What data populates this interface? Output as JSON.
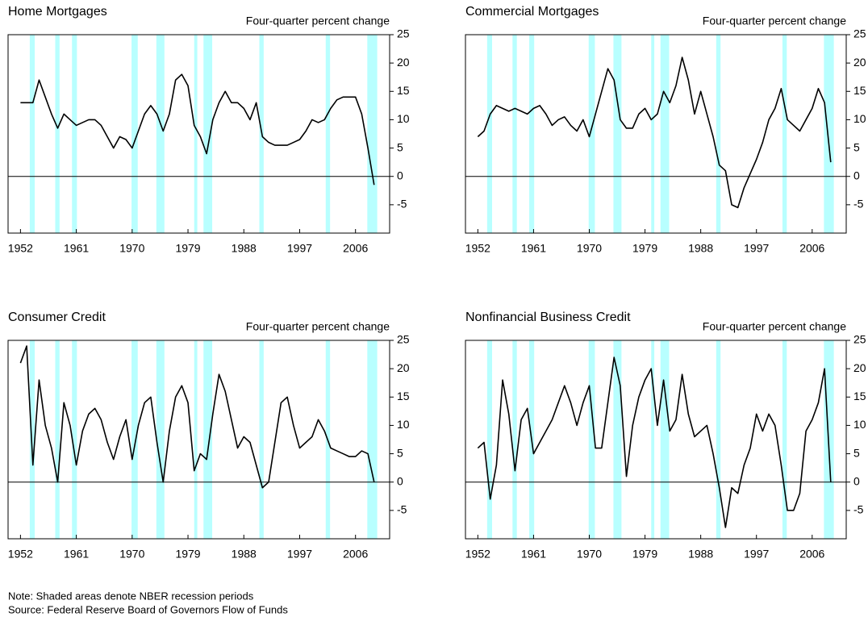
{
  "chart_data": [
    {
      "type": "line",
      "title": "Home Mortgages",
      "y_label": "Four-quarter percent change",
      "color": "#000000",
      "recession_color": "#b8ffff",
      "xlim": [
        1950,
        2011.5
      ],
      "xticks": [
        1952,
        1961,
        1970,
        1979,
        1988,
        1997,
        2006
      ],
      "ylim": [
        -10,
        25
      ],
      "yticks": [
        -5,
        0,
        5,
        10,
        15,
        20,
        25
      ],
      "zero_line": true,
      "recessions": [
        [
          1953.5,
          1954.3
        ],
        [
          1957.6,
          1958.3
        ],
        [
          1960.3,
          1961.1
        ],
        [
          1969.9,
          1970.9
        ],
        [
          1973.9,
          1975.2
        ],
        [
          1980.0,
          1980.5
        ],
        [
          1981.5,
          1982.9
        ],
        [
          1990.5,
          1991.2
        ],
        [
          2001.2,
          2001.9
        ],
        [
          2007.9,
          2009.5
        ]
      ],
      "x": [
        1952,
        1953,
        1954,
        1955,
        1956,
        1957,
        1958,
        1959,
        1960,
        1961,
        1962,
        1963,
        1964,
        1965,
        1966,
        1967,
        1968,
        1969,
        1970,
        1971,
        1972,
        1973,
        1974,
        1975,
        1976,
        1977,
        1978,
        1979,
        1980,
        1981,
        1982,
        1983,
        1984,
        1985,
        1986,
        1987,
        1988,
        1989,
        1990,
        1991,
        1992,
        1993,
        1994,
        1995,
        1996,
        1997,
        1998,
        1999,
        2000,
        2001,
        2002,
        2003,
        2004,
        2005,
        2006,
        2007,
        2008,
        2009
      ],
      "values": [
        13,
        13,
        13,
        17,
        14,
        11,
        8.5,
        11,
        10,
        9,
        9.5,
        10,
        10,
        9,
        7,
        5,
        7,
        6.5,
        5,
        8,
        11,
        12.5,
        11,
        8,
        11,
        17,
        18,
        16,
        9,
        7,
        4,
        10,
        13,
        15,
        13,
        13,
        12,
        10,
        13,
        7,
        6,
        5.5,
        5.5,
        5.5,
        6,
        6.5,
        8,
        10,
        9.5,
        10,
        12,
        13.5,
        14,
        14,
        14,
        11,
        5,
        -1.5
      ]
    },
    {
      "type": "line",
      "title": "Commercial Mortgages",
      "y_label": "Four-quarter percent change",
      "color": "#000000",
      "recession_color": "#b8ffff",
      "xlim": [
        1950,
        2011.5
      ],
      "xticks": [
        1952,
        1961,
        1970,
        1979,
        1988,
        1997,
        2006
      ],
      "ylim": [
        -10,
        25
      ],
      "yticks": [
        -5,
        0,
        5,
        10,
        15,
        20,
        25
      ],
      "zero_line": true,
      "recessions": [
        [
          1953.5,
          1954.3
        ],
        [
          1957.6,
          1958.3
        ],
        [
          1960.3,
          1961.1
        ],
        [
          1969.9,
          1970.9
        ],
        [
          1973.9,
          1975.2
        ],
        [
          1980.0,
          1980.5
        ],
        [
          1981.5,
          1982.9
        ],
        [
          1990.5,
          1991.2
        ],
        [
          2001.2,
          2001.9
        ],
        [
          2007.9,
          2009.5
        ]
      ],
      "x": [
        1952,
        1953,
        1954,
        1955,
        1956,
        1957,
        1958,
        1959,
        1960,
        1961,
        1962,
        1963,
        1964,
        1965,
        1966,
        1967,
        1968,
        1969,
        1970,
        1971,
        1972,
        1973,
        1974,
        1975,
        1976,
        1977,
        1978,
        1979,
        1980,
        1981,
        1982,
        1983,
        1984,
        1985,
        1986,
        1987,
        1988,
        1989,
        1990,
        1991,
        1992,
        1993,
        1994,
        1995,
        1996,
        1997,
        1998,
        1999,
        2000,
        2001,
        2002,
        2003,
        2004,
        2005,
        2006,
        2007,
        2008,
        2009
      ],
      "values": [
        7,
        8,
        11,
        12.5,
        12,
        11.5,
        12,
        11.5,
        11,
        12,
        12.5,
        11,
        9,
        10,
        10.5,
        9,
        8,
        10,
        7,
        11,
        15,
        19,
        17,
        10,
        8.5,
        8.5,
        11,
        12,
        10,
        11,
        15,
        13,
        16,
        21,
        17,
        11,
        15,
        11,
        7,
        2,
        1,
        -5,
        -5.5,
        -2,
        0.5,
        3,
        6,
        10,
        12,
        15.5,
        10,
        9,
        8,
        10,
        12,
        15.5,
        13,
        2.5
      ]
    },
    {
      "type": "line",
      "title": "Consumer Credit",
      "y_label": "Four-quarter percent change",
      "color": "#000000",
      "recession_color": "#b8ffff",
      "xlim": [
        1950,
        2011.5
      ],
      "xticks": [
        1952,
        1961,
        1970,
        1979,
        1988,
        1997,
        2006
      ],
      "ylim": [
        -10,
        25
      ],
      "yticks": [
        -5,
        0,
        5,
        10,
        15,
        20,
        25
      ],
      "zero_line": true,
      "recessions": [
        [
          1953.5,
          1954.3
        ],
        [
          1957.6,
          1958.3
        ],
        [
          1960.3,
          1961.1
        ],
        [
          1969.9,
          1970.9
        ],
        [
          1973.9,
          1975.2
        ],
        [
          1980.0,
          1980.5
        ],
        [
          1981.5,
          1982.9
        ],
        [
          1990.5,
          1991.2
        ],
        [
          2001.2,
          2001.9
        ],
        [
          2007.9,
          2009.5
        ]
      ],
      "x": [
        1952,
        1953,
        1954,
        1955,
        1956,
        1957,
        1958,
        1959,
        1960,
        1961,
        1962,
        1963,
        1964,
        1965,
        1966,
        1967,
        1968,
        1969,
        1970,
        1971,
        1972,
        1973,
        1974,
        1975,
        1976,
        1977,
        1978,
        1979,
        1980,
        1981,
        1982,
        1983,
        1984,
        1985,
        1986,
        1987,
        1988,
        1989,
        1990,
        1991,
        1992,
        1993,
        1994,
        1995,
        1996,
        1997,
        1998,
        1999,
        2000,
        2001,
        2002,
        2003,
        2004,
        2005,
        2006,
        2007,
        2008,
        2009
      ],
      "values": [
        21,
        24,
        3,
        18,
        10,
        6,
        0,
        14,
        10,
        3,
        9,
        12,
        13,
        11,
        7,
        4,
        8,
        11,
        4,
        10,
        14,
        15,
        7,
        0,
        9,
        15,
        17,
        14,
        2,
        5,
        4,
        12,
        19,
        16,
        11,
        6,
        8,
        7,
        3,
        -1,
        0,
        7,
        14,
        15,
        10,
        6,
        7,
        8,
        11,
        9,
        6,
        5.5,
        5,
        4.5,
        4.5,
        5.5,
        5,
        0
      ]
    },
    {
      "type": "line",
      "title": "Nonfinancial Business Credit",
      "y_label": "Four-quarter percent change",
      "color": "#000000",
      "recession_color": "#b8ffff",
      "xlim": [
        1950,
        2011.5
      ],
      "xticks": [
        1952,
        1961,
        1970,
        1979,
        1988,
        1997,
        2006
      ],
      "ylim": [
        -10,
        25
      ],
      "yticks": [
        -5,
        0,
        5,
        10,
        15,
        20,
        25
      ],
      "zero_line": true,
      "recessions": [
        [
          1953.5,
          1954.3
        ],
        [
          1957.6,
          1958.3
        ],
        [
          1960.3,
          1961.1
        ],
        [
          1969.9,
          1970.9
        ],
        [
          1973.9,
          1975.2
        ],
        [
          1980.0,
          1980.5
        ],
        [
          1981.5,
          1982.9
        ],
        [
          1990.5,
          1991.2
        ],
        [
          2001.2,
          2001.9
        ],
        [
          2007.9,
          2009.5
        ]
      ],
      "x": [
        1952,
        1953,
        1954,
        1955,
        1956,
        1957,
        1958,
        1959,
        1960,
        1961,
        1962,
        1963,
        1964,
        1965,
        1966,
        1967,
        1968,
        1969,
        1970,
        1971,
        1972,
        1973,
        1974,
        1975,
        1976,
        1977,
        1978,
        1979,
        1980,
        1981,
        1982,
        1983,
        1984,
        1985,
        1986,
        1987,
        1988,
        1989,
        1990,
        1991,
        1992,
        1993,
        1994,
        1995,
        1996,
        1997,
        1998,
        1999,
        2000,
        2001,
        2002,
        2003,
        2004,
        2005,
        2006,
        2007,
        2008,
        2009
      ],
      "values": [
        6,
        7,
        -3,
        3,
        18,
        12,
        2,
        11,
        13,
        5,
        7,
        9,
        11,
        14,
        17,
        14,
        10,
        14,
        17,
        6,
        6,
        14,
        22,
        17,
        1,
        10,
        15,
        18,
        20,
        10,
        18,
        9,
        11,
        19,
        12,
        8,
        9,
        10,
        5,
        -1,
        -8,
        -1,
        -2,
        3,
        6,
        12,
        9,
        12,
        10,
        3,
        -5,
        -5,
        -2,
        9,
        11,
        14,
        20,
        0
      ]
    }
  ],
  "footnotes": [
    "Note: Shaded areas denote NBER recession periods",
    "Source: Federal Reserve Board of Governors Flow of Funds"
  ]
}
